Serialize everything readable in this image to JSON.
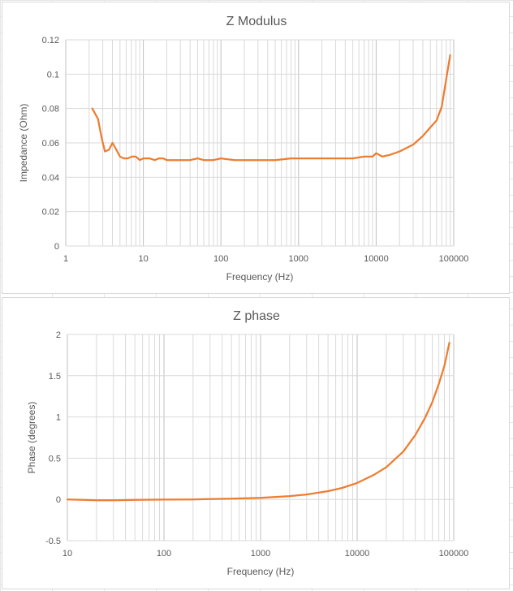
{
  "chart_data": [
    {
      "type": "line",
      "title": "Z Modulus",
      "xlabel": "Frequency (Hz)",
      "ylabel": "Impedance (Ohm)",
      "xscale": "log",
      "xlim": [
        1,
        100000
      ],
      "ylim": [
        0,
        0.12
      ],
      "x_ticks": [
        "1",
        "10",
        "100",
        "1000",
        "10000",
        "100000"
      ],
      "y_ticks": [
        "0",
        "0.02",
        "0.04",
        "0.06",
        "0.08",
        "0.1",
        "0.12"
      ],
      "grid": true,
      "legend": "none",
      "color": "#ed7d31",
      "series": [
        {
          "x": [
            2.2,
            2.6,
            2.9,
            3.2,
            3.6,
            4.0,
            4.5,
            5.0,
            5.6,
            6.3,
            7.1,
            8.0,
            9.0,
            10,
            12,
            14,
            16,
            18,
            20,
            25,
            30,
            40,
            50,
            60,
            80,
            100,
            150,
            200,
            300,
            500,
            800,
            1000,
            2000,
            3000,
            5000,
            7000,
            9000,
            10000,
            12000,
            15000,
            20000,
            30000,
            40000,
            50000,
            60000,
            70000,
            80000,
            90000
          ],
          "y": [
            0.08,
            0.074,
            0.063,
            0.055,
            0.056,
            0.06,
            0.056,
            0.052,
            0.051,
            0.051,
            0.052,
            0.052,
            0.05,
            0.051,
            0.051,
            0.05,
            0.051,
            0.051,
            0.05,
            0.05,
            0.05,
            0.05,
            0.051,
            0.05,
            0.05,
            0.051,
            0.05,
            0.05,
            0.05,
            0.05,
            0.051,
            0.051,
            0.051,
            0.051,
            0.051,
            0.052,
            0.052,
            0.054,
            0.052,
            0.053,
            0.055,
            0.059,
            0.064,
            0.069,
            0.073,
            0.081,
            0.097,
            0.111
          ]
        }
      ]
    },
    {
      "type": "line",
      "title": "Z phase",
      "xlabel": "Frequency (Hz)",
      "ylabel": "Phase (degrees)",
      "xscale": "log",
      "xlim": [
        10,
        100000
      ],
      "ylim": [
        -0.5,
        2
      ],
      "x_ticks": [
        "10",
        "100",
        "1000",
        "10000",
        "100000"
      ],
      "y_ticks": [
        "-0.5",
        "0",
        "0.5",
        "1",
        "1.5",
        "2"
      ],
      "grid": true,
      "legend": "none",
      "color": "#ed7d31",
      "series": [
        {
          "x": [
            10,
            15,
            20,
            30,
            50,
            100,
            200,
            300,
            500,
            1000,
            2000,
            3000,
            5000,
            7000,
            10000,
            15000,
            20000,
            30000,
            40000,
            50000,
            60000,
            70000,
            80000,
            90000
          ],
          "y": [
            0.0,
            -0.005,
            -0.01,
            -0.01,
            -0.005,
            -0.002,
            0.0,
            0.005,
            0.01,
            0.02,
            0.04,
            0.06,
            0.1,
            0.14,
            0.2,
            0.3,
            0.39,
            0.58,
            0.78,
            0.98,
            1.18,
            1.4,
            1.62,
            1.9
          ]
        }
      ]
    }
  ]
}
